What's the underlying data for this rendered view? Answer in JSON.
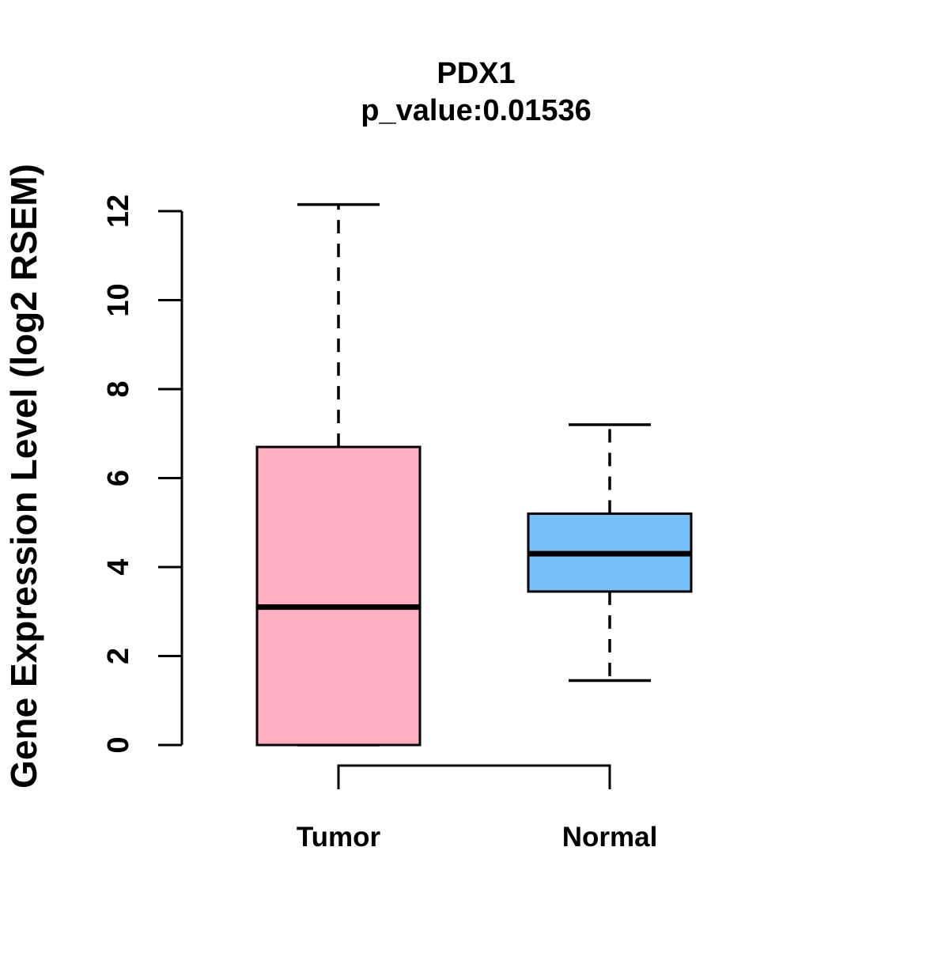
{
  "chart_data": {
    "type": "boxplot",
    "title": "PDX1",
    "subtitle": "p_value:0.01536",
    "p_value": 0.01536,
    "ylabel": "Gene Expression Level (log2 RSEM)",
    "xlabel": "",
    "categories": [
      "Tumor",
      "Normal"
    ],
    "yticks": [
      0,
      2,
      4,
      6,
      8,
      10,
      12
    ],
    "ylim": [
      0,
      12.2
    ],
    "grid": false,
    "legend": "none",
    "whisker_style": "dashed",
    "border_color": "#000000",
    "background_color": "#ffffff",
    "series": [
      {
        "name": "Tumor",
        "color": "#FFAFC1",
        "lower_whisker": 0,
        "q1": 0,
        "median": 3.1,
        "q3": 6.7,
        "upper_whisker": 12.15
      },
      {
        "name": "Normal",
        "color": "#76BFF7",
        "lower_whisker": 1.45,
        "q1": 3.45,
        "median": 4.3,
        "q3": 5.2,
        "upper_whisker": 7.2
      }
    ],
    "significance_bracket": {
      "between": [
        "Tumor",
        "Normal"
      ]
    }
  }
}
